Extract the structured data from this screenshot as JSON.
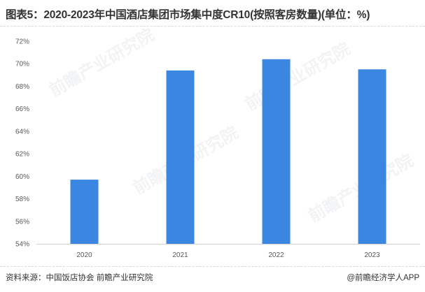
{
  "title": "图表5：2020-2023年中国酒店集团市场集中度CR10(按照客房数量)(单位：%)",
  "source": "资料来源：中国饭店协会 前瞻产业研究院",
  "brand": "@前瞻经济学人APP",
  "watermark": "前瞻产业研究院",
  "colors": {
    "bar": "#3a86e0",
    "axis": "#d0d0d0",
    "text": "#595959"
  },
  "chart_data": {
    "type": "bar",
    "categories": [
      "2020",
      "2021",
      "2022",
      "2023"
    ],
    "values": [
      59.7,
      69.4,
      70.4,
      69.5
    ],
    "ylim": [
      54,
      72
    ],
    "yticks": [
      54,
      56,
      58,
      60,
      62,
      64,
      66,
      68,
      70,
      72
    ],
    "ytick_labels": [
      "54%",
      "56%",
      "58%",
      "60%",
      "62%",
      "64%",
      "66%",
      "68%",
      "70%",
      "72%"
    ],
    "grid": false,
    "legend": "none"
  }
}
